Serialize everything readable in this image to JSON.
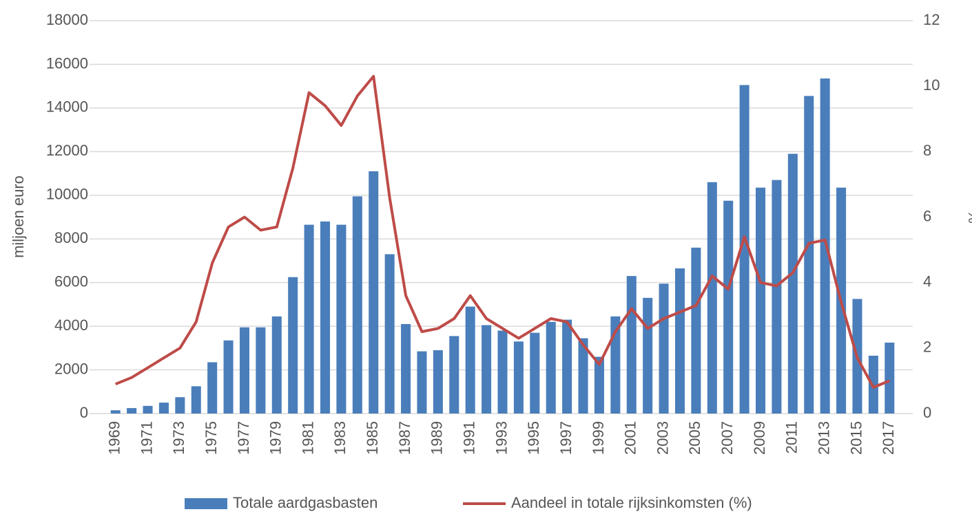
{
  "chart_data": {
    "type": "bar-line",
    "y_label": "miljoen euro",
    "y2_label": "%",
    "categories": [
      "1969",
      null,
      "1971",
      null,
      "1973",
      null,
      "1975",
      null,
      "1977",
      null,
      "1979",
      null,
      "1981",
      null,
      "1983",
      null,
      "1985",
      null,
      "1987",
      null,
      "1989",
      null,
      "1991",
      null,
      "1993",
      null,
      "1995",
      null,
      "1997",
      null,
      "1999",
      null,
      "2001",
      null,
      "2003",
      null,
      "2005",
      null,
      "2007",
      null,
      "2009",
      null,
      "2011",
      null,
      "2013",
      null,
      "2015",
      null,
      "2017"
    ],
    "series": [
      {
        "name": "Totale aardgasbasten",
        "type": "bar",
        "color": "#4a7ebb",
        "values": [
          150,
          250,
          350,
          500,
          750,
          1250,
          2350,
          3350,
          3950,
          3950,
          4450,
          6250,
          8650,
          8800,
          8650,
          9950,
          11100,
          7300,
          4100,
          2850,
          2900,
          3550,
          4900,
          4050,
          3800,
          3300,
          3700,
          4200,
          4300,
          3450,
          2600,
          4450,
          6300,
          5300,
          5950,
          6650,
          7600,
          10600,
          9750,
          15050,
          10350,
          10700,
          11900,
          14550,
          15350,
          10350,
          5250,
          2650,
          3250
        ]
      },
      {
        "name": "Aandeel in totale rijksinkomsten (%)",
        "type": "line",
        "axis": "y2",
        "color": "#be4b48",
        "values": [
          0.9,
          1.1,
          1.4,
          1.7,
          2.0,
          2.8,
          4.6,
          5.7,
          6.0,
          5.6,
          5.7,
          7.5,
          9.8,
          9.4,
          8.8,
          9.7,
          10.3,
          6.6,
          3.6,
          2.5,
          2.6,
          2.9,
          3.6,
          2.9,
          2.6,
          2.3,
          2.6,
          2.9,
          2.8,
          2.1,
          1.5,
          2.5,
          3.2,
          2.6,
          2.9,
          3.1,
          3.3,
          4.2,
          3.8,
          5.4,
          4.0,
          3.9,
          4.3,
          5.2,
          5.3,
          3.4,
          1.7,
          0.8,
          1.0
        ]
      }
    ],
    "ylim": [
      0,
      18000
    ],
    "yticks": [
      0,
      2000,
      4000,
      6000,
      8000,
      10000,
      12000,
      14000,
      16000,
      18000
    ],
    "y2lim": [
      0,
      12
    ],
    "y2ticks": [
      0,
      2,
      4,
      6,
      8,
      10,
      12
    ],
    "grid": true,
    "legend": "bottom"
  }
}
